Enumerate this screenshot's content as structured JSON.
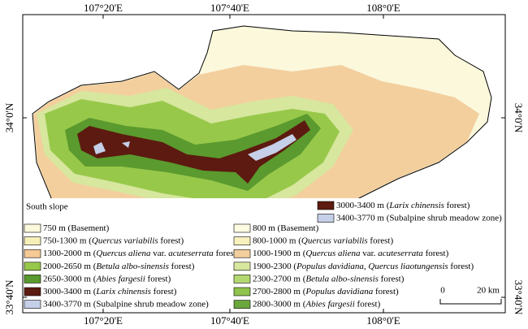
{
  "map": {
    "top_labels": [
      "107°20'E",
      "107°40'E",
      "108°0'E"
    ],
    "bottom_labels": [
      "107°20'E",
      "107°40'E",
      "108°0'E"
    ],
    "left_labels": [
      "34°0'N",
      "33°40'N"
    ],
    "right_labels": [
      "34°0'N",
      "33°40'N"
    ],
    "legend": {
      "heading": "South slope",
      "upper_items": [
        {
          "color": "#5c1a10",
          "parts": [
            "3000-3400 m (",
            "Larix chinensis",
            " forest)"
          ]
        },
        {
          "color": "#c5cfe8",
          "parts": [
            "3400-3770 m (Subalpine shrub meadow zone)"
          ]
        }
      ],
      "south_items": [
        {
          "color": "#fbf8dc",
          "parts": [
            "750 m (Basement)"
          ]
        },
        {
          "color": "#f6f0b8",
          "parts": [
            "750-1300 m (",
            "Quercus variabilis",
            " forest)"
          ]
        },
        {
          "color": "#f5c994",
          "parts": [
            "1300-2000 m (",
            "Quercus aliena",
            " var. ",
            "acuteserrata",
            " forest)"
          ]
        },
        {
          "color": "#98c84a",
          "parts": [
            "2000-2650 m (",
            "Betula albo-sinensis",
            " forest)"
          ]
        },
        {
          "color": "#5a9a2e",
          "parts": [
            "2650-3000 m (",
            "Abies fargesii",
            " forest)"
          ]
        },
        {
          "color": "#5c1a10",
          "parts": [
            "3000-3400 m (",
            "Larix chinensis",
            " forest)"
          ]
        },
        {
          "color": "#c5cfe8",
          "parts": [
            "3400-3770 m (Subalpine shrub meadow zone)"
          ]
        }
      ],
      "north_items": [
        {
          "color": "#fdfbe2",
          "parts": [
            "800 m (Basement)"
          ]
        },
        {
          "color": "#f7f2bd",
          "parts": [
            "800-1000 m (",
            "Quercus variabilis",
            " forest)"
          ]
        },
        {
          "color": "#f3cf9e",
          "parts": [
            "1000-1900 m (",
            "Quercus aliena",
            " var. ",
            "acuteserrata",
            " forest)"
          ]
        },
        {
          "color": "#d7e79e",
          "parts": [
            "1900-2300 (",
            "Populus davidiana",
            ", ",
            "Quercus liaotungensis",
            " forest)"
          ]
        },
        {
          "color": "#b3d870",
          "parts": [
            "2300-2700 m (",
            "Betula albo-sinensis",
            " forest)"
          ]
        },
        {
          "color": "#8fc34d",
          "parts": [
            "2700-2800 m (",
            "Populus davidiana",
            " forest)"
          ]
        },
        {
          "color": "#6aa73c",
          "parts": [
            "2800-3000 m (",
            "Abies fargesii",
            " forest)"
          ]
        }
      ]
    },
    "scale_bar": {
      "start": "0",
      "end": "20 km"
    }
  }
}
